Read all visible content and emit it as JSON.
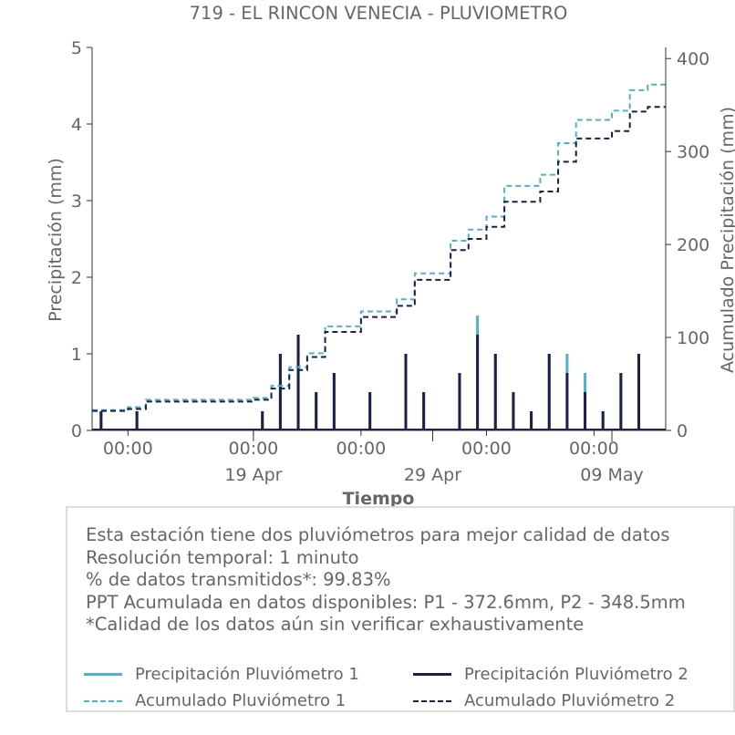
{
  "colors": {
    "p1": "#4fb3c6",
    "p2": "#1c1f4a",
    "text": "#666666",
    "axis": "#333333"
  },
  "chart_data": {
    "type": "line",
    "title": "719 - EL RINCON VENECIA - PLUVIOMETRO",
    "xlabel": "Tiempo",
    "ylabel": "Precipitación (mm)",
    "y2label": "Acumulado Precipitación (mm)",
    "ylim": [
      0,
      5
    ],
    "y2lim": [
      0,
      412
    ],
    "yticks": [
      "0",
      "1",
      "2",
      "3",
      "4",
      "5"
    ],
    "y2ticks": [
      "0",
      "100",
      "200",
      "300",
      "400"
    ],
    "xlim": [
      "2025-04-10",
      "2025-05-12"
    ],
    "xticks_minor": [
      {
        "date": "2025-04-12",
        "label": "00:00"
      },
      {
        "date": "2025-04-19",
        "label": "00:00"
      },
      {
        "date": "2025-04-25",
        "label": "00:00"
      },
      {
        "date": "2025-05-02",
        "label": "00:00"
      },
      {
        "date": "2025-05-08",
        "label": "00:00"
      }
    ],
    "xticks_major": [
      {
        "date": "2025-04-19",
        "label": "19 Apr"
      },
      {
        "date": "2025-04-29",
        "label": "29 Apr"
      },
      {
        "date": "2025-05-09",
        "label": "09 May"
      }
    ],
    "series": [
      {
        "name": "Precipitación Pluviómetro 1",
        "axis": "left",
        "style": "solid",
        "color": "#4fb3c6",
        "x": [
          "2025-04-10",
          "2025-04-11",
          "2025-04-12",
          "2025-04-13",
          "2025-04-14",
          "2025-04-15",
          "2025-04-16",
          "2025-04-17",
          "2025-04-18",
          "2025-04-19",
          "2025-04-20",
          "2025-04-21",
          "2025-04-22",
          "2025-04-23",
          "2025-04-24",
          "2025-04-25",
          "2025-04-26",
          "2025-04-27",
          "2025-04-28",
          "2025-04-29",
          "2025-04-30",
          "2025-05-01",
          "2025-05-02",
          "2025-05-03",
          "2025-05-04",
          "2025-05-05",
          "2025-05-06",
          "2025-05-07",
          "2025-05-08",
          "2025-05-09",
          "2025-05-10",
          "2025-05-11"
        ],
        "values": [
          0.25,
          0,
          0.25,
          0,
          0,
          0,
          0,
          0,
          0,
          0.25,
          1.0,
          1.25,
          0.5,
          0.75,
          0,
          0.5,
          0,
          1.0,
          0.5,
          0,
          0.75,
          1.5,
          1.0,
          0.5,
          0.25,
          1.0,
          1.0,
          0.75,
          0.25,
          0.75,
          1.0,
          0
        ]
      },
      {
        "name": "Precipitación Pluviómetro 2",
        "axis": "left",
        "style": "solid",
        "color": "#1c1f4a",
        "x": [
          "2025-04-10",
          "2025-04-11",
          "2025-04-12",
          "2025-04-13",
          "2025-04-14",
          "2025-04-15",
          "2025-04-16",
          "2025-04-17",
          "2025-04-18",
          "2025-04-19",
          "2025-04-20",
          "2025-04-21",
          "2025-04-22",
          "2025-04-23",
          "2025-04-24",
          "2025-04-25",
          "2025-04-26",
          "2025-04-27",
          "2025-04-28",
          "2025-04-29",
          "2025-04-30",
          "2025-05-01",
          "2025-05-02",
          "2025-05-03",
          "2025-05-04",
          "2025-05-05",
          "2025-05-06",
          "2025-05-07",
          "2025-05-08",
          "2025-05-09",
          "2025-05-10",
          "2025-05-11"
        ],
        "values": [
          0.25,
          0,
          0.25,
          0,
          0,
          0,
          0,
          0,
          0,
          0.25,
          1.0,
          1.25,
          0.5,
          0.75,
          0,
          0.5,
          0,
          1.0,
          0.5,
          0,
          0.75,
          1.25,
          1.0,
          0.5,
          0.25,
          1.0,
          0.75,
          0.5,
          0.25,
          0.75,
          1.0,
          0
        ]
      },
      {
        "name": "Acumulado Pluviómetro 1",
        "axis": "right",
        "style": "dashed",
        "color": "#4fb3c6",
        "x": [
          "2025-04-10",
          "2025-04-12",
          "2025-04-13",
          "2025-04-19",
          "2025-04-20",
          "2025-04-21",
          "2025-04-22",
          "2025-04-23",
          "2025-04-25",
          "2025-04-27",
          "2025-04-28",
          "2025-04-30",
          "2025-05-01",
          "2025-05-02",
          "2025-05-03",
          "2025-05-05",
          "2025-05-06",
          "2025-05-07",
          "2025-05-09",
          "2025-05-10",
          "2025-05-11",
          "2025-05-12"
        ],
        "values": [
          22,
          25,
          33,
          35,
          48,
          68,
          83,
          112,
          128,
          141,
          169,
          204,
          216,
          230,
          263,
          275,
          309,
          334,
          344,
          366,
          372,
          372
        ]
      },
      {
        "name": "Acumulado Pluviómetro 2",
        "axis": "right",
        "style": "dashed",
        "color": "#1c1f4a",
        "x": [
          "2025-04-10",
          "2025-04-12",
          "2025-04-13",
          "2025-04-19",
          "2025-04-20",
          "2025-04-21",
          "2025-04-22",
          "2025-04-23",
          "2025-04-25",
          "2025-04-27",
          "2025-04-28",
          "2025-04-30",
          "2025-05-01",
          "2025-05-02",
          "2025-05-03",
          "2025-05-05",
          "2025-05-06",
          "2025-05-07",
          "2025-05-09",
          "2025-05-10",
          "2025-05-11",
          "2025-05-12"
        ],
        "values": [
          21,
          23,
          31,
          33,
          45,
          65,
          79,
          106,
          122,
          134,
          162,
          194,
          206,
          219,
          246,
          257,
          289,
          314,
          322,
          343,
          348,
          348
        ]
      }
    ],
    "legend_position": "bottom"
  },
  "info": {
    "lines": [
      "Esta estación tiene dos pluviómetros para mejor calidad de datos",
      "Resolución temporal: 1 minuto",
      "% de datos transmitidos*: 99.83%",
      "PPT Acumulada en datos disponibles: P1 - 372.6mm, P2 - 348.5mm",
      "*Calidad de los datos aún sin verificar exhaustivamente"
    ]
  },
  "legend": {
    "items": [
      {
        "label": "Precipitación Pluviómetro 1",
        "style": "solid",
        "color": "#4fb3c6"
      },
      {
        "label": "Precipitación Pluviómetro 2",
        "style": "solid",
        "color": "#1c1f4a"
      },
      {
        "label": "Acumulado Pluviómetro 1",
        "style": "dashed",
        "color": "#4fb3c6"
      },
      {
        "label": "Acumulado Pluviómetro 2",
        "style": "dashed",
        "color": "#1c1f4a"
      }
    ]
  }
}
